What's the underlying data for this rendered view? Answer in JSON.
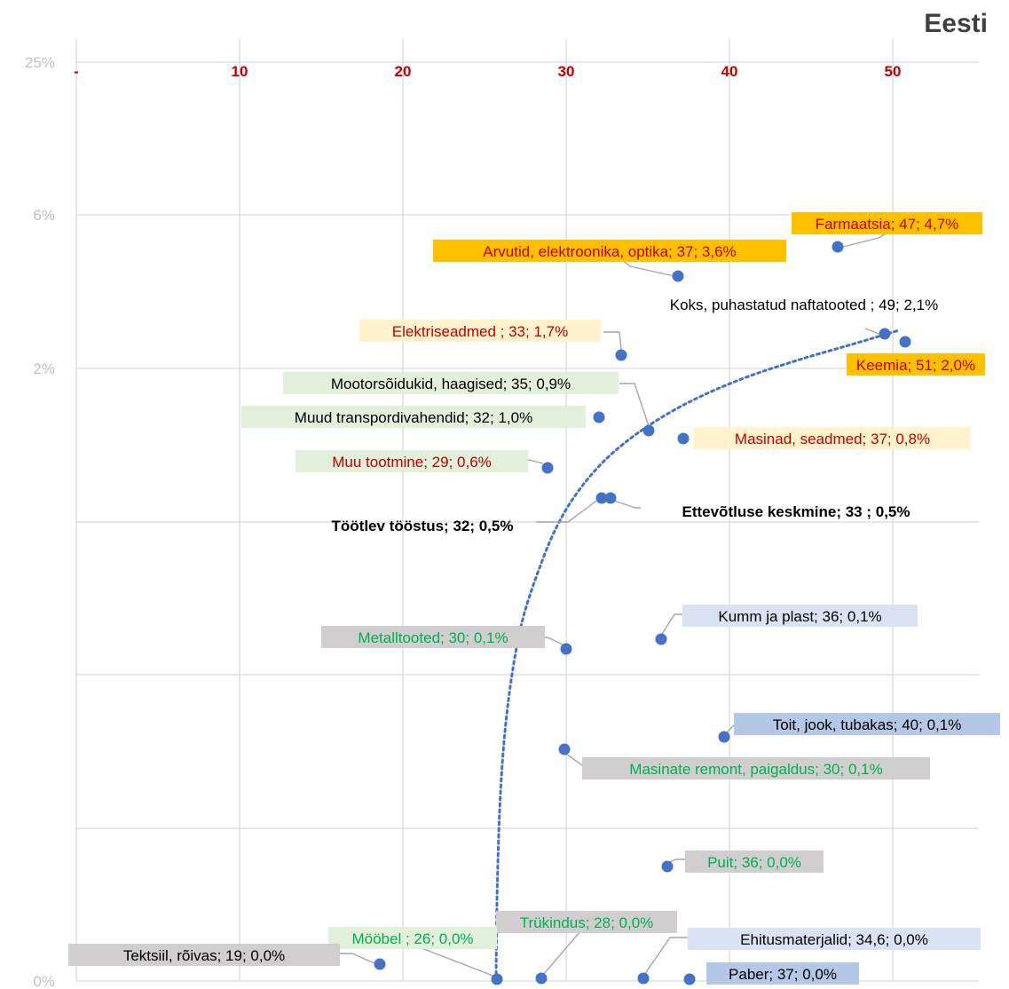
{
  "chart_data": {
    "type": "scatter",
    "title": "Eesti",
    "x_ticks": [
      "-",
      "10",
      "20",
      "30",
      "40",
      "50"
    ],
    "y_ticks": [
      "25%",
      "6%",
      "2%",
      "0%"
    ],
    "xlim": [
      0,
      55
    ],
    "grid": true,
    "colors": {
      "point": "#4472c4",
      "trend": "#4472c4",
      "red": "#c00000",
      "green": "#00b050",
      "black": "#000000",
      "orange_bg": "#ffc000",
      "cream_bg": "#fff2cc",
      "lightgreen_bg": "#e2efda",
      "gray_bg": "#d0cece",
      "blue_bg": "#b4c7e7",
      "pale_blue_bg": "#dae3f3"
    },
    "points": [
      {
        "label": "Farmaatsia; 47; 4,7%",
        "x": 47,
        "y": 4.7
      },
      {
        "label": "Arvutid, elektroonika, optika; 37; 3,6%",
        "x": 37,
        "y": 3.6
      },
      {
        "label": "Koks, puhastatud naftatooted ; 49; 2,1%",
        "x": 49,
        "y": 2.1
      },
      {
        "label": "Keemia; 51; 2,0%",
        "x": 51,
        "y": 2.0
      },
      {
        "label": "Elektriseadmed ; 33; 1,7%",
        "x": 33,
        "y": 1.7
      },
      {
        "label": "Mootorsõidukid, haagised; 35; 0,9%",
        "x": 35,
        "y": 0.9
      },
      {
        "label": "Muud transpordivahendid; 32; 1,0%",
        "x": 32,
        "y": 1.0
      },
      {
        "label": "Masinad, seadmed; 37; 0,8%",
        "x": 37,
        "y": 0.8
      },
      {
        "label": "Muu tootmine; 29; 0,6%",
        "x": 29,
        "y": 0.6
      },
      {
        "label": "Töötlev tööstus; 32; 0,5%",
        "x": 32,
        "y": 0.5
      },
      {
        "label": "Ettevõtluse keskmine;   33 ; 0,5%",
        "x": 33,
        "y": 0.5
      },
      {
        "label": "Kumm ja plast; 36; 0,1%",
        "x": 36,
        "y": 0.1
      },
      {
        "label": "Metalltooted; 30; 0,1%",
        "x": 30,
        "y": 0.1
      },
      {
        "label": "Toit, jook, tubakas; 40; 0,1%",
        "x": 40,
        "y": 0.1
      },
      {
        "label": "Masinate remont, paigaldus; 30; 0,1%",
        "x": 30,
        "y": 0.1
      },
      {
        "label": "Puit; 36; 0,0%",
        "x": 36,
        "y": 0.0
      },
      {
        "label": "Trükindus; 28; 0,0%",
        "x": 28,
        "y": 0.0
      },
      {
        "label": "Mööbel ; 26; 0,0%",
        "x": 26,
        "y": 0.0
      },
      {
        "label": "Tektsiil, rõivas; 19; 0,0%",
        "x": 19,
        "y": 0.0
      },
      {
        "label": "Ehitusmaterjalid;  34,6; 0,0%",
        "x": 34.6,
        "y": 0.0
      },
      {
        "label": "Paber; 37; 0,0%",
        "x": 37,
        "y": 0.0
      }
    ]
  }
}
